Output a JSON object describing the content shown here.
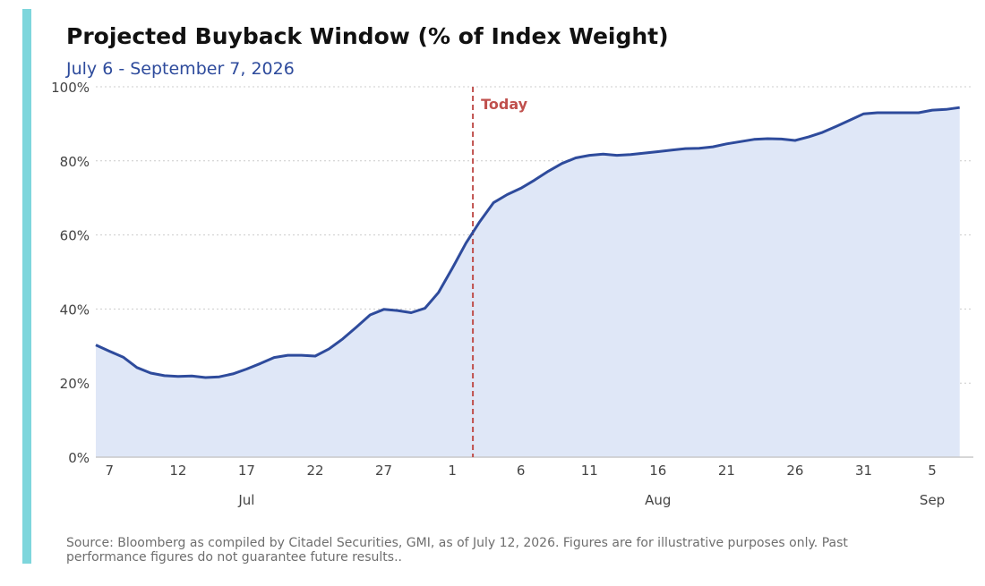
{
  "colors": {
    "accent_bar": "#7ed6dc",
    "line": "#2e4b9c",
    "area_fill": "#dfe7f7",
    "today_marker": "#c0504d",
    "subtitle": "#2e4b9c",
    "grid": "#cccccc",
    "axis": "#c8c8c8",
    "tick_text": "#444444"
  },
  "header": {
    "title": "Projected Buyback Window (% of Index Weight)",
    "subtitle": "July 6 - September 7, 2026"
  },
  "footer": {
    "source": "Source: Bloomberg as compiled by Citadel Securities, GMI, as of July 12, 2026. Figures are for illustrative purposes only. Past performance figures do not guarantee future results.."
  },
  "chart_data": {
    "type": "area",
    "x_start": "2026-07-06",
    "x_end": "2026-09-08",
    "ylim": [
      0,
      100
    ],
    "y_ticks": [
      0,
      20,
      40,
      60,
      80,
      100
    ],
    "y_tick_labels": [
      "0%",
      "20%",
      "40%",
      "60%",
      "80%",
      "100%"
    ],
    "grid": "horizontal dotted",
    "x_ticks": [
      {
        "date": "2026-07-07",
        "label": "7"
      },
      {
        "date": "2026-07-12",
        "label": "12"
      },
      {
        "date": "2026-07-17",
        "label": "17"
      },
      {
        "date": "2026-07-22",
        "label": "22"
      },
      {
        "date": "2026-07-27",
        "label": "27"
      },
      {
        "date": "2026-08-01",
        "label": "1"
      },
      {
        "date": "2026-08-06",
        "label": "6"
      },
      {
        "date": "2026-08-11",
        "label": "11"
      },
      {
        "date": "2026-08-16",
        "label": "16"
      },
      {
        "date": "2026-08-21",
        "label": "21"
      },
      {
        "date": "2026-08-26",
        "label": "26"
      },
      {
        "date": "2026-08-31",
        "label": "31"
      },
      {
        "date": "2026-09-05",
        "label": "5"
      }
    ],
    "month_labels": [
      {
        "date": "2026-07-17",
        "label": "Jul"
      },
      {
        "date": "2026-08-16",
        "label": "Aug"
      },
      {
        "date": "2026-09-05",
        "label": "Sep"
      }
    ],
    "today": {
      "date": "2026-08-02",
      "offset_days": 0.5,
      "label": "Today"
    },
    "series": [
      {
        "dates": [
          "2026-07-06",
          "2026-07-07",
          "2026-07-08",
          "2026-07-09",
          "2026-07-10",
          "2026-07-11",
          "2026-07-12",
          "2026-07-13",
          "2026-07-14",
          "2026-07-15",
          "2026-07-16",
          "2026-07-17",
          "2026-07-18",
          "2026-07-19",
          "2026-07-20",
          "2026-07-21",
          "2026-07-22",
          "2026-07-23",
          "2026-07-24",
          "2026-07-25",
          "2026-07-26",
          "2026-07-27",
          "2026-07-28",
          "2026-07-29",
          "2026-07-30",
          "2026-07-31",
          "2026-08-01",
          "2026-08-02",
          "2026-08-03",
          "2026-08-04",
          "2026-08-05",
          "2026-08-06",
          "2026-08-07",
          "2026-08-08",
          "2026-08-09",
          "2026-08-10",
          "2026-08-11",
          "2026-08-12",
          "2026-08-13",
          "2026-08-14",
          "2026-08-15",
          "2026-08-16",
          "2026-08-17",
          "2026-08-18",
          "2026-08-19",
          "2026-08-20",
          "2026-08-21",
          "2026-08-22",
          "2026-08-23",
          "2026-08-24",
          "2026-08-25",
          "2026-08-26",
          "2026-08-27",
          "2026-08-28",
          "2026-08-29",
          "2026-08-30",
          "2026-08-31",
          "2026-09-01",
          "2026-09-02",
          "2026-09-03",
          "2026-09-04",
          "2026-09-05",
          "2026-09-06",
          "2026-09-07"
        ],
        "values": [
          30.3,
          28.6,
          27.0,
          24.2,
          22.7,
          22.0,
          21.8,
          21.9,
          21.5,
          21.7,
          22.5,
          23.8,
          25.3,
          26.9,
          27.5,
          27.5,
          27.3,
          29.2,
          31.9,
          35.1,
          38.4,
          39.9,
          39.6,
          39.0,
          40.2,
          44.5,
          51.0,
          57.8,
          63.6,
          68.7,
          70.9,
          72.6,
          74.8,
          77.2,
          79.3,
          80.8,
          81.5,
          81.8,
          81.5,
          81.7,
          82.1,
          82.5,
          82.9,
          83.3,
          83.4,
          83.8,
          84.6,
          85.2,
          85.8,
          86.0,
          85.9,
          85.5,
          86.5,
          87.7,
          89.3,
          91.0,
          92.7,
          93.0,
          93.0,
          93.0,
          93.0,
          93.7,
          93.9,
          94.4
        ]
      }
    ]
  }
}
